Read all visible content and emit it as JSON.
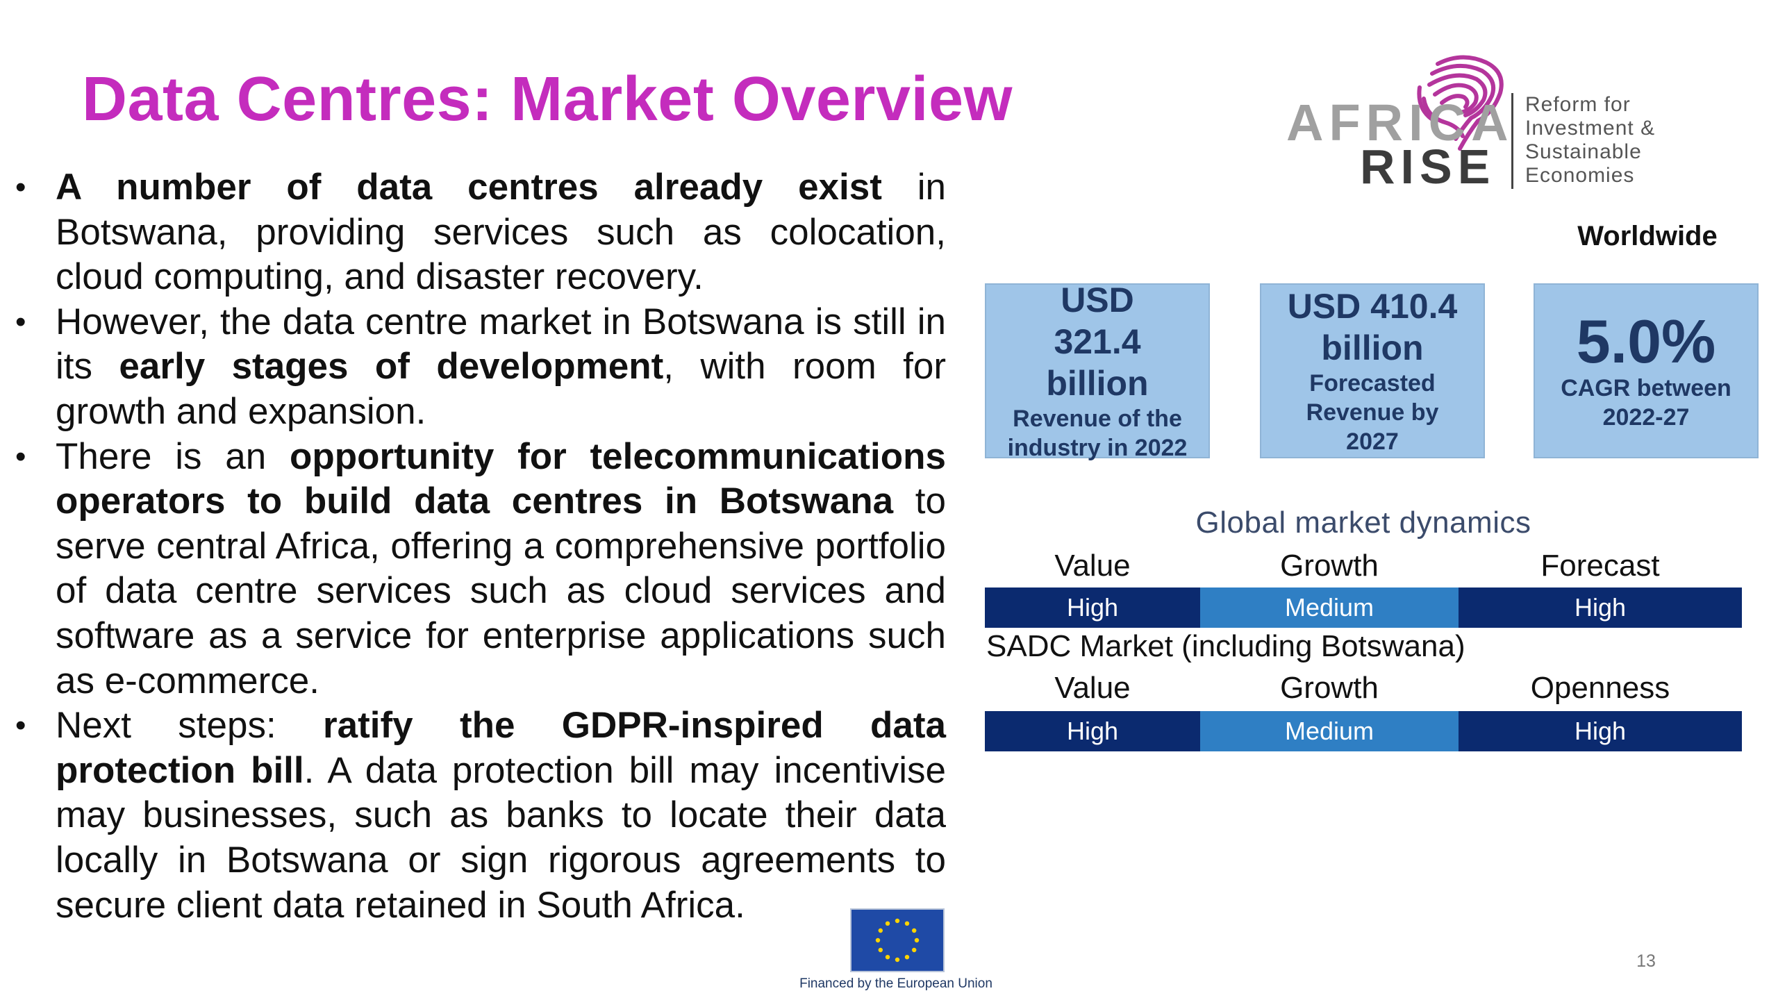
{
  "title": "Data Centres: Market Overview",
  "bullets": [
    {
      "parts": [
        {
          "text": "A number of data centres already exist",
          "bold": true
        },
        {
          "text": " in Botswana, providing services such as colocation, cloud computing, and disaster recovery.",
          "bold": false
        }
      ]
    },
    {
      "parts": [
        {
          "text": "However, the data centre market in Botswana is still in its ",
          "bold": false
        },
        {
          "text": "early stages of development",
          "bold": true
        },
        {
          "text": ", with room for growth and expansion.",
          "bold": false
        }
      ]
    },
    {
      "parts": [
        {
          "text": "There is an ",
          "bold": false
        },
        {
          "text": "opportunity for telecommunications operators to build data centres in Botswana",
          "bold": true
        },
        {
          "text": " to serve central Africa, offering a comprehensive portfolio of data centre services such as cloud services and software as a service for enterprise applications such as e-commerce.",
          "bold": false
        }
      ]
    },
    {
      "parts": [
        {
          "text": "Next steps: ",
          "bold": false
        },
        {
          "text": "ratify the GDPR-inspired data protection bill",
          "bold": true
        },
        {
          "text": ". A data protection bill may incentivise may businesses, such as banks to locate their data locally in Botswana or sign rigorous agreements to secure client data retained in South Africa.",
          "bold": false
        }
      ]
    }
  ],
  "logo": {
    "word1": "AFRICA",
    "word2": "RISE",
    "tagline": [
      "Reform for",
      "Investment &",
      "Sustainable",
      "Economies"
    ]
  },
  "worldwide_label": "Worldwide",
  "stats": {
    "revenue_2022": {
      "value": "USD 321.4 billion",
      "caption": "Revenue of the industry in 2022"
    },
    "forecast_2027": {
      "value": "USD 410.4 billion",
      "caption": "Forecasted Revenue by 2027"
    },
    "cagr": {
      "value": "5.0%",
      "caption": "CAGR between 2022-27"
    }
  },
  "global": {
    "title": "Global market dynamics",
    "headers": [
      "Value",
      "Growth",
      "Forecast"
    ],
    "values": [
      "High",
      "Medium",
      "High"
    ]
  },
  "sadc": {
    "title": "SADC Market (including Botswana)",
    "headers": [
      "Value",
      "Growth",
      "Openness"
    ],
    "values": [
      "High",
      "Medium",
      "High"
    ]
  },
  "footer": {
    "eu_caption": "Financed by the European Union",
    "page_number": "13"
  },
  "colors": {
    "title": "#c42cbd",
    "stat_box": "#9fc5e8",
    "stat_text": "#1f3864",
    "dark_cell": "#0b2a6f",
    "mid_cell": "#2f7fc4",
    "logo_print": "#b4359c"
  }
}
